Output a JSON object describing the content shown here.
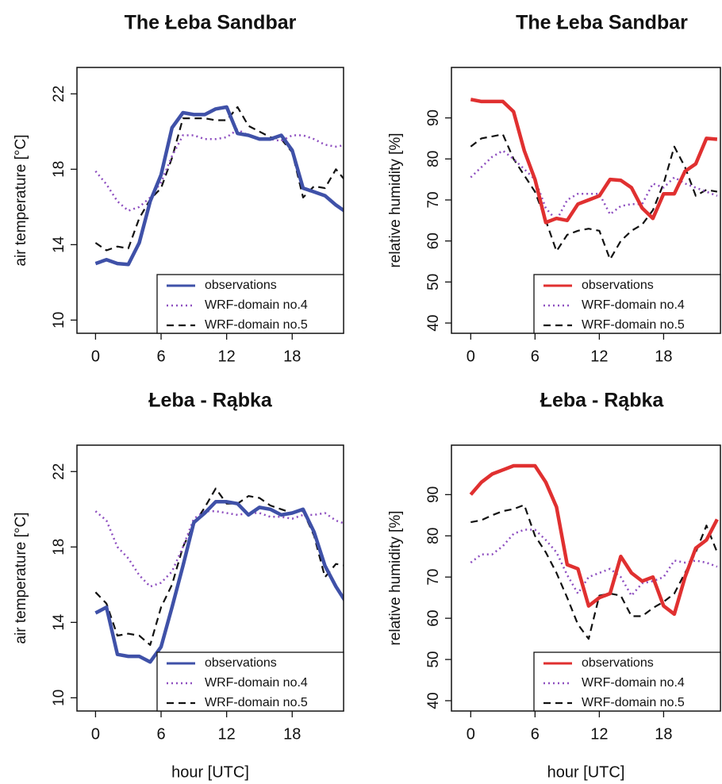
{
  "chart_data": [
    {
      "type": "line",
      "title": "The Łeba Sandbar",
      "y_label": "air temperature [°C]",
      "x": [
        0,
        1,
        2,
        3,
        4,
        5,
        6,
        7,
        8,
        9,
        10,
        11,
        12,
        13,
        14,
        15,
        16,
        17,
        18,
        19,
        20,
        21,
        22,
        23
      ],
      "xlim": [
        -1.7,
        22.7
      ],
      "ylim": [
        9.3,
        23.4
      ],
      "xticks": [
        0,
        6,
        12,
        18
      ],
      "yticks": [
        10,
        14,
        18,
        22
      ],
      "legend": "bottomright",
      "series": [
        {
          "name": "observations",
          "color": "#3f51a8",
          "line_style": "solid",
          "values": [
            13.0,
            13.2,
            13.0,
            12.95,
            14.1,
            16.3,
            17.7,
            20.2,
            21.0,
            20.9,
            20.9,
            21.2,
            21.3,
            19.9,
            19.8,
            19.6,
            19.6,
            19.8,
            19.0,
            17.0,
            16.8,
            16.6,
            16.1,
            15.7
          ]
        },
        {
          "name": "WRF-domain no.4",
          "color": "#8e4fc0",
          "line_style": "dotted",
          "values": [
            17.9,
            17.2,
            16.3,
            15.8,
            16.0,
            16.5,
            17.3,
            18.7,
            19.8,
            19.8,
            19.6,
            19.6,
            19.7,
            20.1,
            19.8,
            19.6,
            19.6,
            19.5,
            19.8,
            19.8,
            19.6,
            19.3,
            19.2,
            19.3
          ]
        },
        {
          "name": "WRF-domain no.5",
          "color": "#111111",
          "line_style": "dashed",
          "values": [
            14.1,
            13.7,
            13.9,
            13.8,
            15.4,
            16.4,
            17.0,
            18.6,
            20.7,
            20.7,
            20.7,
            20.6,
            20.6,
            21.3,
            20.3,
            20.0,
            19.7,
            19.6,
            18.9,
            16.5,
            17.1,
            17.0,
            18.0,
            17.3
          ]
        }
      ]
    },
    {
      "type": "line",
      "title": "The Łeba Sandbar",
      "y_label": "relative humidity  [%]",
      "x": [
        0,
        1,
        2,
        3,
        4,
        5,
        6,
        7,
        8,
        9,
        10,
        11,
        12,
        13,
        14,
        15,
        16,
        17,
        18,
        19,
        20,
        21,
        22,
        23
      ],
      "xlim": [
        -1.8,
        23.3
      ],
      "ylim": [
        37.5,
        102.3
      ],
      "xticks": [
        0,
        6,
        12,
        18
      ],
      "yticks": [
        40,
        50,
        60,
        70,
        80,
        90
      ],
      "legend": "bottomright",
      "series": [
        {
          "name": "observations",
          "color": "#e03030",
          "line_style": "solid",
          "values": [
            94.5,
            94,
            94,
            94,
            91.5,
            82,
            75,
            64.5,
            65.5,
            65,
            69,
            70,
            71,
            75,
            74.8,
            73,
            68,
            65.5,
            71.5,
            71.5,
            77,
            78.8,
            85,
            84.8
          ]
        },
        {
          "name": "WRF-domain no.4",
          "color": "#8e4fc0",
          "line_style": "dotted",
          "values": [
            75.5,
            78,
            80.5,
            82,
            80,
            77.5,
            75,
            68,
            65,
            70,
            71.5,
            71.5,
            71.5,
            66.5,
            68.5,
            69,
            69,
            74,
            73,
            75.5,
            74,
            73,
            72,
            71
          ]
        },
        {
          "name": "WRF-domain no.5",
          "color": "#111111",
          "line_style": "dashed",
          "values": [
            83,
            85,
            85.5,
            86,
            80,
            76,
            72,
            65,
            57.5,
            61.5,
            62.5,
            63,
            62.5,
            55.5,
            60,
            62.5,
            64,
            67.5,
            74,
            83,
            78,
            71,
            72.5,
            72
          ]
        }
      ]
    },
    {
      "type": "line",
      "title": "Łeba - Rąbka",
      "y_label": "air temperature [°C]",
      "x_label": "hour [UTC]",
      "x": [
        0,
        1,
        2,
        3,
        4,
        5,
        6,
        7,
        8,
        9,
        10,
        11,
        12,
        13,
        14,
        15,
        16,
        17,
        18,
        19,
        20,
        21,
        22,
        23
      ],
      "xlim": [
        -1.7,
        22.7
      ],
      "ylim": [
        9.3,
        23.4
      ],
      "xticks": [
        0,
        6,
        12,
        18
      ],
      "yticks": [
        10,
        14,
        18,
        22
      ],
      "legend": "bottomright",
      "series": [
        {
          "name": "observations",
          "color": "#3f51a8",
          "line_style": "solid",
          "values": [
            14.5,
            14.8,
            12.3,
            12.2,
            12.2,
            11.9,
            12.7,
            14.8,
            17.0,
            19.3,
            19.8,
            20.4,
            20.4,
            20.3,
            19.7,
            20.1,
            20.0,
            19.7,
            19.8,
            20.0,
            18.8,
            17.0,
            15.9,
            15.0
          ]
        },
        {
          "name": "WRF-domain no.4",
          "color": "#8e4fc0",
          "line_style": "dotted",
          "values": [
            19.9,
            19.4,
            18.0,
            17.4,
            16.5,
            15.9,
            16.1,
            16.7,
            18.0,
            19.5,
            19.9,
            19.9,
            19.8,
            19.7,
            19.8,
            19.8,
            19.6,
            19.6,
            19.5,
            19.7,
            19.7,
            19.8,
            19.4,
            19.2
          ]
        },
        {
          "name": "WRF-domain no.5",
          "color": "#111111",
          "line_style": "dashed",
          "values": [
            15.6,
            15.0,
            13.3,
            13.4,
            13.3,
            12.8,
            14.8,
            16.0,
            18.0,
            19.2,
            20.1,
            21.1,
            20.3,
            20.3,
            20.7,
            20.6,
            20.2,
            20.0,
            19.8,
            19.9,
            18.6,
            16.4,
            17.1,
            17.0
          ]
        }
      ]
    },
    {
      "type": "line",
      "title": "Łeba - Rąbka",
      "y_label": "relative humidity  [%]",
      "x_label": "hour [UTC]",
      "x": [
        0,
        1,
        2,
        3,
        4,
        5,
        6,
        7,
        8,
        9,
        10,
        11,
        12,
        13,
        14,
        15,
        16,
        17,
        18,
        19,
        20,
        21,
        22,
        23
      ],
      "xlim": [
        -1.8,
        23.3
      ],
      "ylim": [
        37.5,
        102
      ],
      "xticks": [
        0,
        6,
        12,
        18
      ],
      "yticks": [
        40,
        50,
        60,
        70,
        80,
        90
      ],
      "legend": "bottomright",
      "series": [
        {
          "name": "observations",
          "color": "#e03030",
          "line_style": "solid",
          "values": [
            90,
            93,
            95,
            96,
            97,
            97,
            97,
            93,
            87,
            73,
            72,
            63,
            65,
            66,
            75,
            71,
            69,
            70,
            63,
            61,
            70,
            77,
            79,
            84
          ]
        },
        {
          "name": "WRF-domain no.4",
          "color": "#8e4fc0",
          "line_style": "dotted",
          "values": [
            73.5,
            75.5,
            75.5,
            77.5,
            80.5,
            81.5,
            81.5,
            79,
            76,
            70.5,
            66,
            70,
            71,
            72,
            70,
            65.5,
            68.5,
            69,
            70,
            74,
            73.5,
            74,
            73.5,
            72.5
          ]
        },
        {
          "name": "WRF-domain no.5",
          "color": "#111111",
          "line_style": "dashed",
          "values": [
            83.3,
            83.8,
            85,
            86,
            86.5,
            87.5,
            80,
            76,
            71,
            65,
            58.5,
            55,
            65.5,
            66,
            65.5,
            60.5,
            60.5,
            62.5,
            64,
            66,
            71,
            76,
            82.5,
            76
          ]
        }
      ]
    }
  ]
}
